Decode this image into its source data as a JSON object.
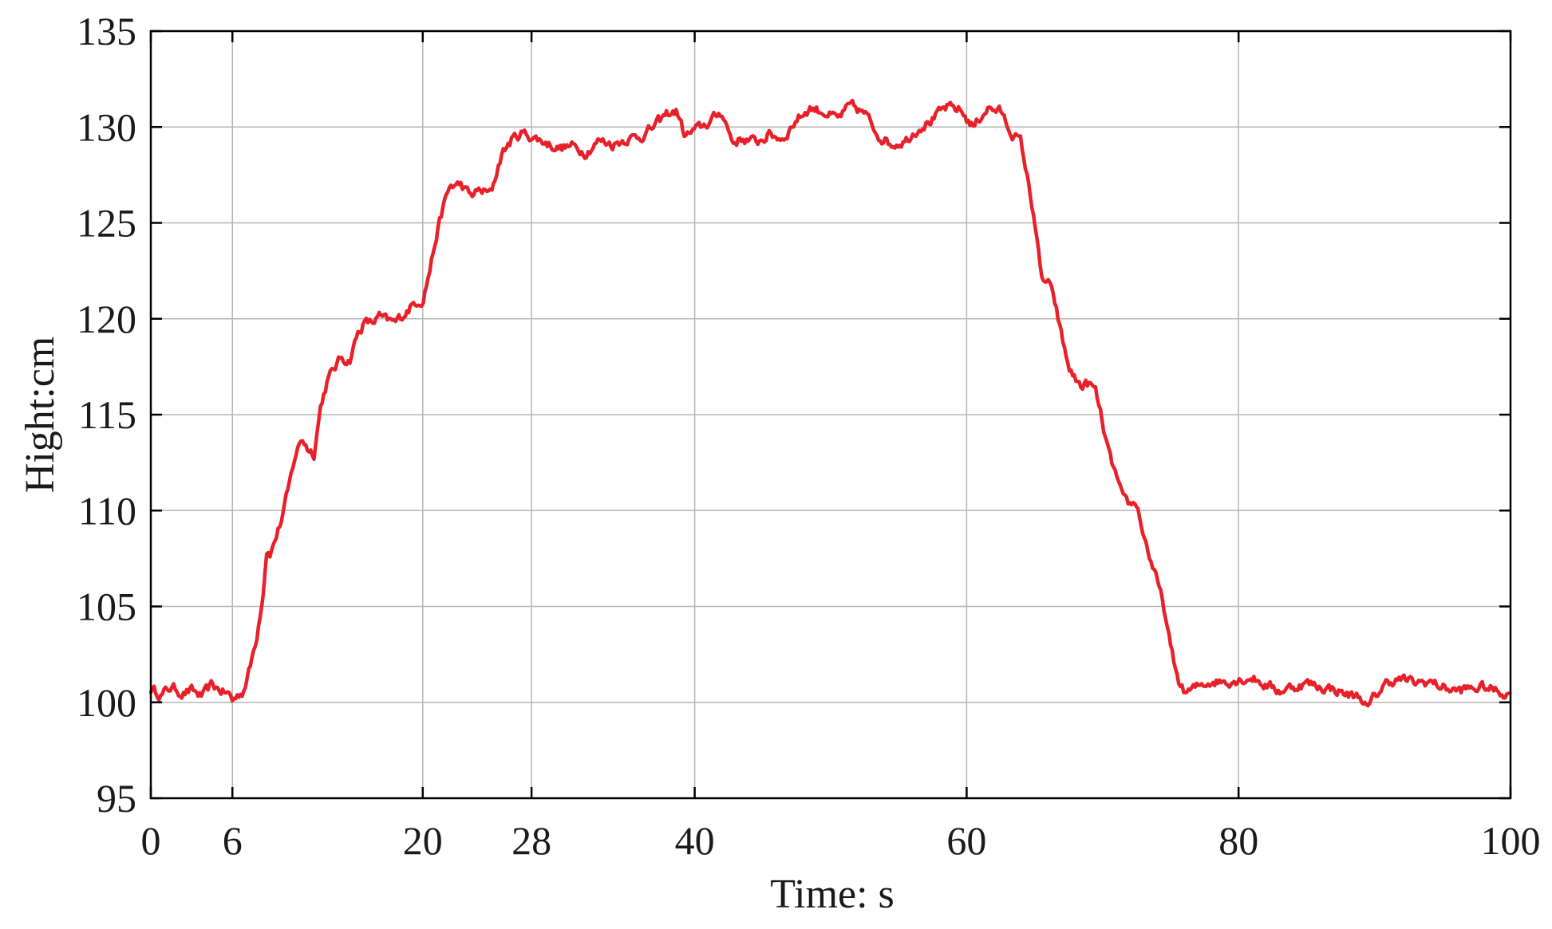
{
  "chart_data": {
    "type": "line",
    "title": "",
    "xlabel": "Time: s",
    "ylabel": "Hight:cm",
    "xlim": [
      0,
      100
    ],
    "ylim": [
      95,
      135
    ],
    "x_ticks": [
      0,
      6,
      20,
      28,
      40,
      60,
      80,
      100
    ],
    "y_ticks": [
      95,
      100,
      105,
      110,
      115,
      120,
      125,
      130,
      135
    ],
    "x_tick_labels": [
      "0",
      "6",
      "20",
      "28",
      "40",
      "60",
      "80",
      "100"
    ],
    "y_tick_labels": [
      "95",
      "100",
      "105",
      "110",
      "115",
      "120",
      "125",
      "130",
      "135"
    ],
    "grid": true,
    "series": [
      {
        "color": "#e8202a",
        "x": [
          0,
          0.8,
          1.5,
          2.3,
          3.0,
          3.8,
          4.5,
          5.2,
          5.8,
          6.0,
          6.8,
          7.3,
          7.8,
          8.3,
          8.5,
          8.8,
          9.2,
          9.6,
          10.1,
          10.6,
          11.1,
          11.6,
          12.0,
          12.5,
          13.0,
          13.5,
          14.0,
          14.6,
          15.2,
          15.7,
          16.3,
          16.8,
          17.3,
          18.0,
          18.8,
          19.5,
          20.0,
          20.5,
          21.0,
          21.5,
          22.0,
          22.8,
          23.5,
          24.2,
          25.0,
          25.8,
          26.5,
          27.3,
          28.0,
          29.0,
          30.0,
          31.0,
          32.0,
          33.0,
          34.0,
          35.0,
          36.0,
          37.0,
          38.0,
          38.7,
          39.3,
          40.0,
          41.0,
          42.0,
          42.8,
          43.5,
          44.5,
          45.5,
          46.5,
          47.5,
          48.5,
          49.5,
          50.5,
          51.5,
          52.5,
          53.5,
          54.5,
          55.5,
          56.5,
          57.5,
          58.5,
          59.5,
          60.5,
          61.5,
          62.5,
          63.2,
          64.0,
          64.5,
          65.0,
          65.5,
          66.0,
          66.5,
          67.0,
          67.5,
          68.0,
          68.5,
          69.0,
          69.5,
          70.0,
          70.5,
          71.0,
          71.5,
          72.0,
          72.5,
          73.0,
          73.5,
          74.0,
          74.5,
          75.0,
          75.5,
          76.0,
          76.5,
          77.0,
          77.5,
          78.0,
          79.0,
          80.0,
          81.0,
          82.0,
          83.0,
          84.0,
          85.0,
          86.0,
          87.0,
          88.0,
          89.0,
          89.5,
          90.0,
          91.0,
          92.0,
          93.0,
          94.0,
          95.0,
          96.0,
          97.0,
          98.0,
          99.0,
          100.0
        ],
        "values": [
          100.7,
          100.4,
          100.8,
          100.5,
          100.6,
          100.3,
          100.9,
          100.6,
          100.4,
          100.1,
          100.6,
          101.8,
          103.5,
          106.0,
          108.0,
          107.8,
          108.6,
          109.5,
          111.0,
          112.8,
          113.8,
          113.2,
          113.0,
          115.5,
          116.8,
          117.4,
          118.0,
          117.8,
          119.2,
          119.8,
          119.8,
          120.1,
          119.9,
          119.8,
          120.4,
          120.9,
          121.0,
          122.5,
          124.3,
          125.8,
          126.9,
          127.0,
          126.4,
          126.7,
          126.5,
          128.6,
          129.3,
          129.7,
          129.5,
          129.2,
          128.9,
          129.0,
          128.7,
          129.3,
          129.1,
          129.4,
          129.5,
          130.0,
          130.7,
          130.8,
          129.5,
          129.8,
          130.2,
          130.8,
          129.2,
          129.4,
          129.2,
          129.6,
          129.4,
          130.4,
          131.0,
          130.8,
          130.4,
          131.1,
          130.7,
          129.6,
          129.1,
          129.3,
          130.0,
          130.4,
          131.0,
          130.9,
          130.0,
          131.0,
          130.8,
          129.8,
          129.2,
          127.2,
          125.2,
          122.0,
          121.9,
          120.8,
          119.0,
          117.5,
          116.8,
          116.5,
          116.6,
          116.2,
          114.5,
          112.8,
          111.8,
          110.5,
          110.3,
          110.4,
          108.8,
          107.5,
          106.3,
          105.0,
          102.8,
          101.3,
          100.5,
          100.6,
          100.8,
          101.0,
          101.1,
          101.1,
          101.2,
          101.3,
          100.9,
          100.6,
          100.8,
          101.0,
          100.8,
          100.7,
          100.4,
          100.3,
          99.6,
          100.3,
          101.1,
          101.2,
          101.0,
          101.1,
          100.8,
          100.6,
          100.7,
          100.8,
          100.6,
          100.4
        ],
        "jitter": 0.45
      }
    ]
  }
}
